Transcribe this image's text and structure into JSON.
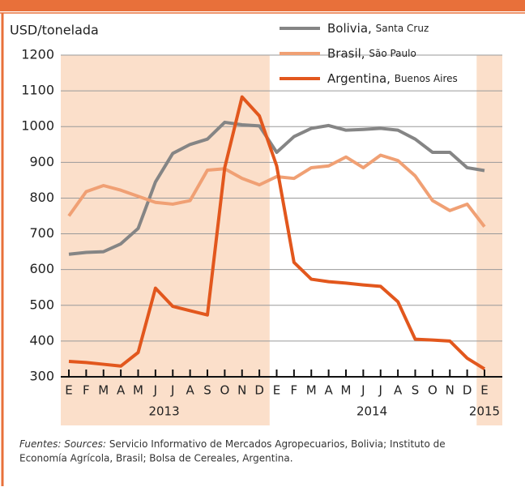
{
  "chart_data": {
    "type": "line",
    "y_label": "USD/tonelada",
    "categories": [
      "E",
      "F",
      "M",
      "A",
      "M",
      "J",
      "J",
      "A",
      "S",
      "O",
      "N",
      "D",
      "E",
      "F",
      "M",
      "A",
      "M",
      "J",
      "J",
      "A",
      "S",
      "O",
      "N",
      "D",
      "E"
    ],
    "years": [
      "2013",
      "2014",
      "2015"
    ],
    "series": [
      {
        "name": "Bolivia,",
        "location": "Santa Cruz",
        "color": "#858585",
        "values": [
          643,
          648,
          650,
          672,
          715,
          845,
          925,
          950,
          965,
          1012,
          1005,
          1002,
          928,
          972,
          995,
          1003,
          990,
          992,
          995,
          990,
          965,
          928,
          928,
          885,
          877
        ]
      },
      {
        "name": "Brasil,",
        "location": "São Paulo",
        "color": "#f0a074",
        "values": [
          750,
          818,
          835,
          822,
          805,
          788,
          783,
          793,
          878,
          882,
          855,
          837,
          860,
          855,
          885,
          890,
          915,
          885,
          920,
          905,
          862,
          793,
          765,
          783,
          720
        ]
      },
      {
        "name": "Argentina,",
        "location": "Buenos Aires",
        "color": "#e2571d",
        "values": [
          343,
          340,
          335,
          330,
          368,
          548,
          497,
          485,
          473,
          885,
          1083,
          1030,
          890,
          620,
          573,
          566,
          562,
          557,
          553,
          510,
          405,
          403,
          400,
          352,
          322
        ]
      }
    ],
    "ylim": [
      300,
      1200
    ],
    "yticks": [
      300,
      400,
      500,
      600,
      700,
      800,
      900,
      1000,
      1100,
      1200
    ],
    "grid": true,
    "source_label": "Fuentes: Sources:",
    "source_lines": [
      "Servicio Informativo de Mercados Agropecuarios, Bolivia; Instituto de",
      "Economía Agrícola, Brasil; Bolsa de Cereales, Argentina."
    ]
  }
}
